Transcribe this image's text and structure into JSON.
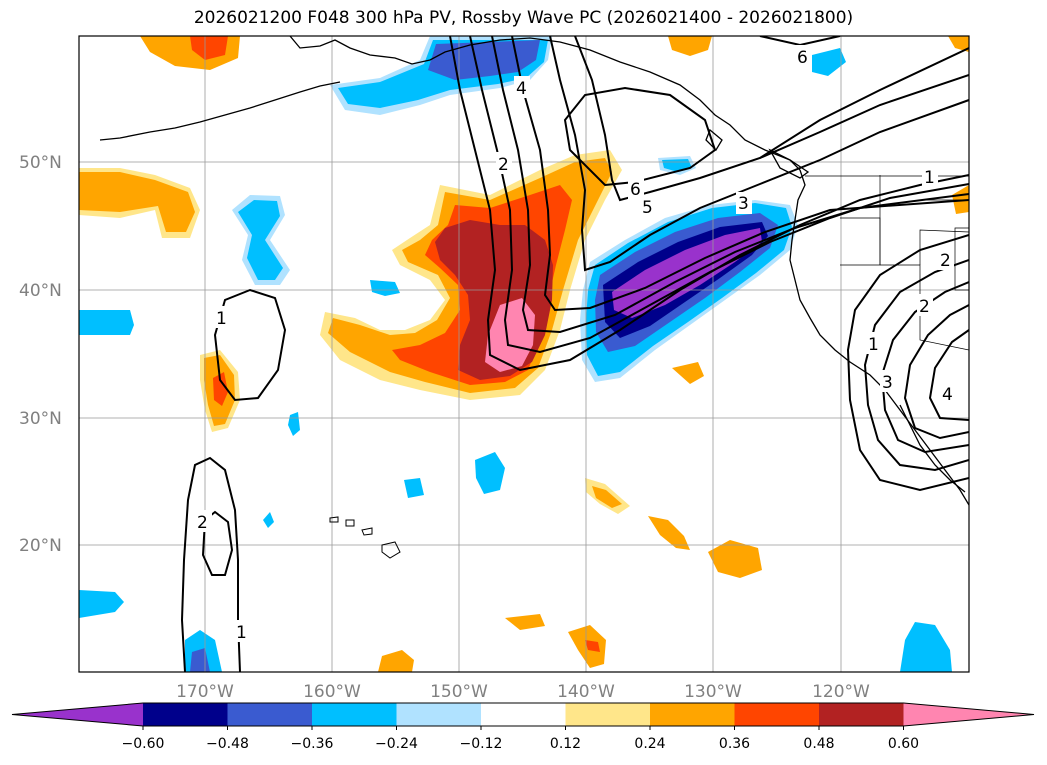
{
  "title": "2026021200 F048 300 hPa PV, Rossby Wave PC (2026021400 - 2026021800)",
  "map": {
    "lat_labels": [
      "50°N",
      "40°N",
      "30°N",
      "20°N"
    ],
    "lon_labels": [
      "170°W",
      "160°W",
      "150°W",
      "140°W",
      "130°W",
      "120°W"
    ],
    "contour_labels": [
      "6",
      "4",
      "2",
      "6",
      "5",
      "3",
      "1",
      "1",
      "2",
      "2",
      "3",
      "4",
      "1",
      "1",
      "2"
    ]
  },
  "colorbar": {
    "ticks": [
      "−0.60",
      "−0.48",
      "−0.36",
      "−0.24",
      "−0.12",
      "0.12",
      "0.24",
      "0.36",
      "0.48",
      "0.60"
    ],
    "colors": [
      "#9932cc",
      "#00008b",
      "#3a5bd0",
      "#00bfff",
      "#b0e2ff",
      "#ffffff",
      "#ffe68a",
      "#ffa500",
      "#ff4500",
      "#b22222",
      "#ff85b0"
    ]
  },
  "colors": {
    "deep_purple": "#9932cc",
    "navy": "#00008b",
    "royal_blue": "#3a5bd0",
    "sky_blue": "#00bfff",
    "light_blue": "#b0e2ff",
    "pale_yellow": "#ffe68a",
    "orange": "#ffa500",
    "red_orange": "#ff4500",
    "firebrick": "#b22222",
    "pink": "#ff85b0"
  }
}
